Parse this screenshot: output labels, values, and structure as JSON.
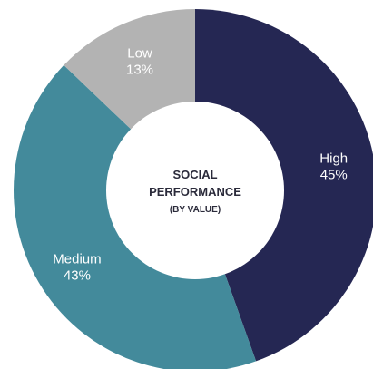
{
  "chart_data": {
    "type": "pie",
    "donut": true,
    "start": "top",
    "direction": "clockwise",
    "center_label": {
      "line1": "SOCIAL",
      "line2": "PERFORMANCE",
      "line3": "(BY VALUE)"
    },
    "slices": [
      {
        "name": "High",
        "value": 45,
        "value_label": "45%",
        "color": "#252753"
      },
      {
        "name": "Medium",
        "value": 43,
        "value_label": "43%",
        "color": "#438a9b"
      },
      {
        "name": "Low",
        "value": 13,
        "value_label": "13%",
        "color": "#b3b3b3"
      }
    ]
  }
}
